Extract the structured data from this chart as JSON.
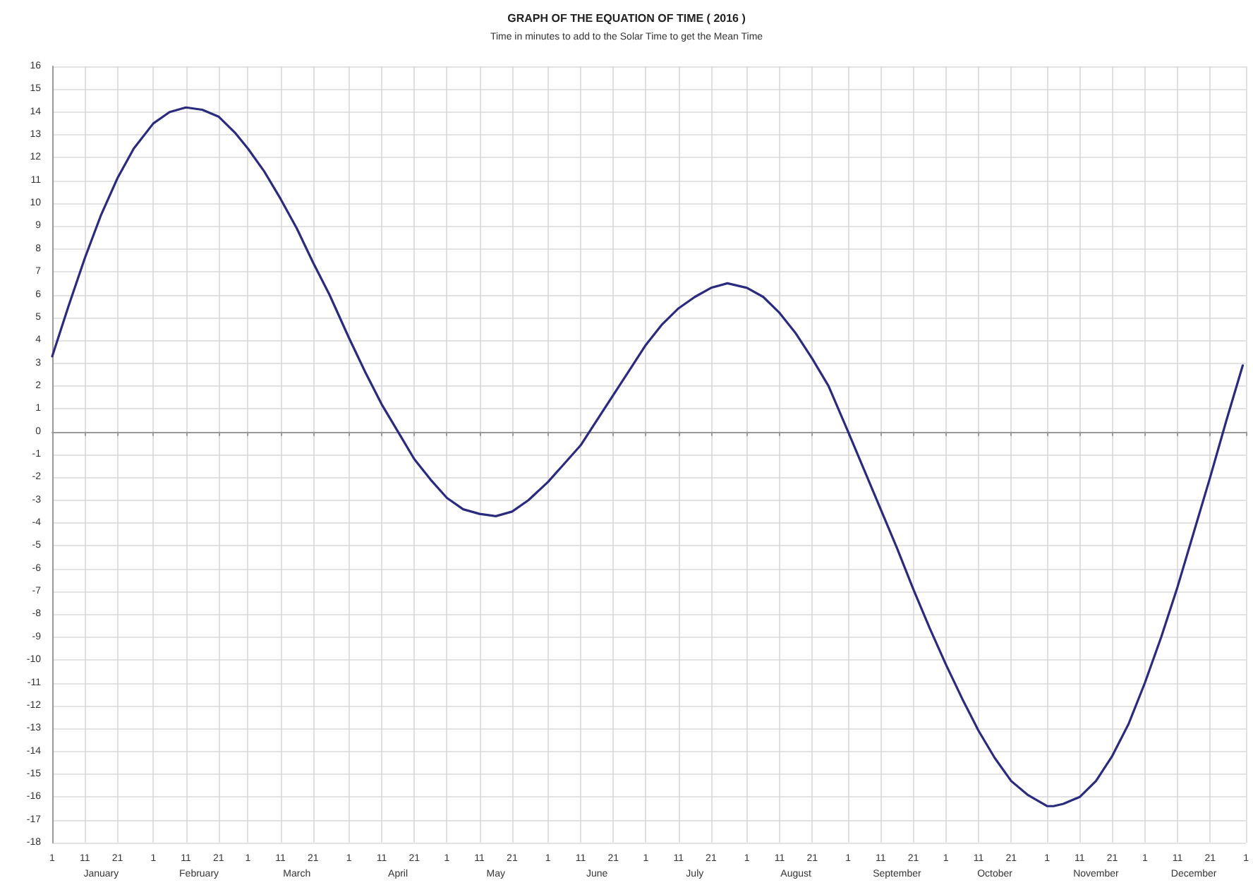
{
  "chart_data": {
    "type": "line",
    "title": "GRAPH OF THE EQUATION OF TIME ( 2016 )",
    "subtitle": "Time in minutes to add to the Solar Time to get the Mean Time",
    "x": [
      "2016-01-01",
      "2016-01-06",
      "2016-01-11",
      "2016-01-16",
      "2016-01-21",
      "2016-01-26",
      "2016-02-01",
      "2016-02-06",
      "2016-02-11",
      "2016-02-16",
      "2016-02-21",
      "2016-02-26",
      "2016-03-01",
      "2016-03-06",
      "2016-03-11",
      "2016-03-16",
      "2016-03-21",
      "2016-03-26",
      "2016-04-01",
      "2016-04-06",
      "2016-04-11",
      "2016-04-16",
      "2016-04-21",
      "2016-04-26",
      "2016-05-01",
      "2016-05-06",
      "2016-05-11",
      "2016-05-16",
      "2016-05-21",
      "2016-05-26",
      "2016-06-01",
      "2016-06-06",
      "2016-06-11",
      "2016-06-16",
      "2016-06-21",
      "2016-06-26",
      "2016-07-01",
      "2016-07-06",
      "2016-07-11",
      "2016-07-16",
      "2016-07-21",
      "2016-07-26",
      "2016-08-01",
      "2016-08-06",
      "2016-08-11",
      "2016-08-16",
      "2016-08-21",
      "2016-08-26",
      "2016-09-01",
      "2016-09-06",
      "2016-09-11",
      "2016-09-16",
      "2016-09-21",
      "2016-09-26",
      "2016-10-01",
      "2016-10-06",
      "2016-10-11",
      "2016-10-16",
      "2016-10-21",
      "2016-10-26",
      "2016-11-01",
      "2016-11-03",
      "2016-11-06",
      "2016-11-11",
      "2016-11-16",
      "2016-11-21",
      "2016-11-26",
      "2016-12-01",
      "2016-12-06",
      "2016-12-11",
      "2016-12-16",
      "2016-12-21",
      "2016-12-26",
      "2016-12-31"
    ],
    "series": [
      {
        "color": "#2a2a7e",
        "values": [
          3.3,
          5.5,
          7.6,
          9.5,
          11.1,
          12.4,
          13.5,
          14.0,
          14.2,
          14.1,
          13.8,
          13.1,
          12.4,
          11.4,
          10.2,
          8.9,
          7.4,
          6.0,
          4.1,
          2.6,
          1.2,
          0.0,
          -1.2,
          -2.1,
          -2.9,
          -3.4,
          -3.6,
          -3.7,
          -3.5,
          -3.0,
          -2.2,
          -1.4,
          -0.6,
          0.5,
          1.6,
          2.7,
          3.8,
          4.7,
          5.4,
          5.9,
          6.3,
          6.5,
          6.3,
          5.9,
          5.2,
          4.3,
          3.2,
          2.0,
          0.0,
          -1.7,
          -3.4,
          -5.1,
          -6.9,
          -8.6,
          -10.2,
          -11.7,
          -13.1,
          -14.3,
          -15.3,
          -15.9,
          -16.4,
          -16.4,
          -16.3,
          -16.0,
          -15.3,
          -14.2,
          -12.8,
          -11.0,
          -9.0,
          -6.8,
          -4.4,
          -2.0,
          0.5,
          2.9
        ]
      }
    ],
    "xlim": [
      "2016-01-01",
      "2017-01-01"
    ],
    "xticks": [
      {
        "value": "2016-01-01",
        "label": "1"
      },
      {
        "value": "2016-01-11",
        "label": "11"
      },
      {
        "value": "2016-01-21",
        "label": "21"
      },
      {
        "value": "2016-02-01",
        "label": "1"
      },
      {
        "value": "2016-02-11",
        "label": "11"
      },
      {
        "value": "2016-02-21",
        "label": "21"
      },
      {
        "value": "2016-03-01",
        "label": "1"
      },
      {
        "value": "2016-03-11",
        "label": "11"
      },
      {
        "value": "2016-03-21",
        "label": "21"
      },
      {
        "value": "2016-04-01",
        "label": "1"
      },
      {
        "value": "2016-04-11",
        "label": "11"
      },
      {
        "value": "2016-04-21",
        "label": "21"
      },
      {
        "value": "2016-05-01",
        "label": "1"
      },
      {
        "value": "2016-05-11",
        "label": "11"
      },
      {
        "value": "2016-05-21",
        "label": "21"
      },
      {
        "value": "2016-06-01",
        "label": "1"
      },
      {
        "value": "2016-06-11",
        "label": "11"
      },
      {
        "value": "2016-06-21",
        "label": "21"
      },
      {
        "value": "2016-07-01",
        "label": "1"
      },
      {
        "value": "2016-07-11",
        "label": "11"
      },
      {
        "value": "2016-07-21",
        "label": "21"
      },
      {
        "value": "2016-08-01",
        "label": "1"
      },
      {
        "value": "2016-08-11",
        "label": "11"
      },
      {
        "value": "2016-08-21",
        "label": "21"
      },
      {
        "value": "2016-09-01",
        "label": "1"
      },
      {
        "value": "2016-09-11",
        "label": "11"
      },
      {
        "value": "2016-09-21",
        "label": "21"
      },
      {
        "value": "2016-10-01",
        "label": "1"
      },
      {
        "value": "2016-10-11",
        "label": "11"
      },
      {
        "value": "2016-10-21",
        "label": "21"
      },
      {
        "value": "2016-11-01",
        "label": "1"
      },
      {
        "value": "2016-11-11",
        "label": "11"
      },
      {
        "value": "2016-11-21",
        "label": "21"
      },
      {
        "value": "2016-12-01",
        "label": "1"
      },
      {
        "value": "2016-12-11",
        "label": "11"
      },
      {
        "value": "2016-12-21",
        "label": "21"
      },
      {
        "value": "2017-01-01",
        "label": "1"
      }
    ],
    "x2lim": [
      "2016-01-01",
      "2017-01-01"
    ],
    "x2ticks": [
      {
        "value": "2016-01-16",
        "label": "January"
      },
      {
        "value": "2016-02-15",
        "label": "February"
      },
      {
        "value": "2016-03-16",
        "label": "March"
      },
      {
        "value": "2016-04-16",
        "label": "April"
      },
      {
        "value": "2016-05-16",
        "label": "May"
      },
      {
        "value": "2016-06-16",
        "label": "June"
      },
      {
        "value": "2016-07-16",
        "label": "July"
      },
      {
        "value": "2016-08-16",
        "label": "August"
      },
      {
        "value": "2016-09-16",
        "label": "September"
      },
      {
        "value": "2016-10-16",
        "label": "October"
      },
      {
        "value": "2016-11-16",
        "label": "November"
      },
      {
        "value": "2016-12-16",
        "label": "December"
      }
    ],
    "ylim": [
      -18,
      16
    ],
    "yticks": [
      -18,
      -17,
      -16,
      -15,
      -14,
      -13,
      -12,
      -11,
      -10,
      -9,
      -8,
      -7,
      -6,
      -5,
      -4,
      -3,
      -2,
      -1,
      0,
      1,
      2,
      3,
      4,
      5,
      6,
      7,
      8,
      9,
      10,
      11,
      12,
      13,
      14,
      15,
      16
    ],
    "grid": true,
    "marker": "none",
    "line_style": "solid"
  }
}
